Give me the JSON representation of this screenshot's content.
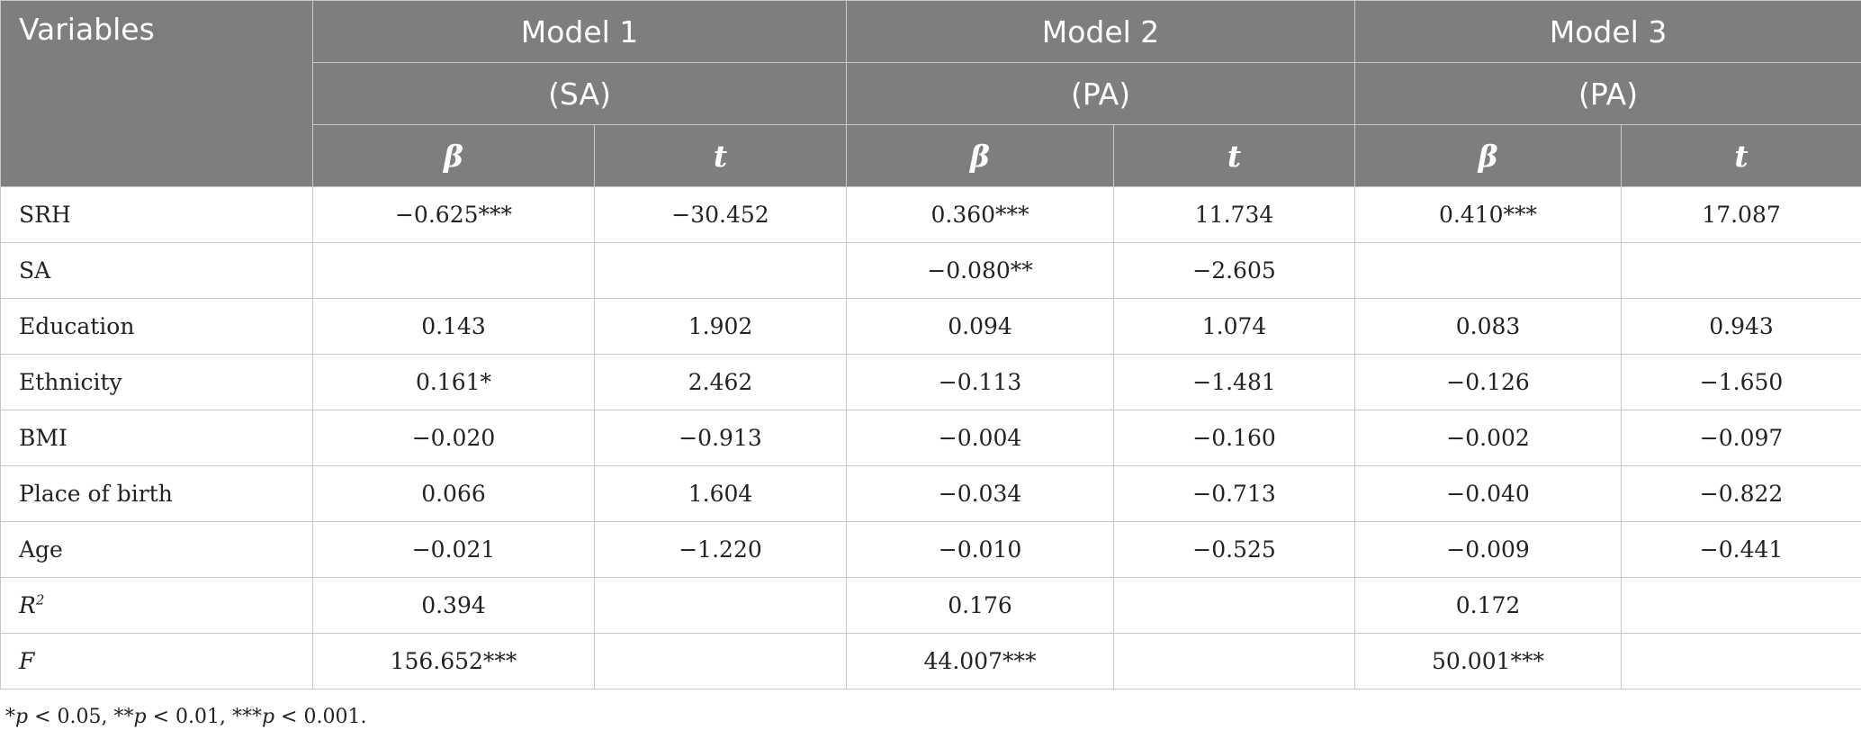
{
  "header": {
    "variables_label": "Variables",
    "models": [
      {
        "name": "Model 1",
        "outcome": "(SA)"
      },
      {
        "name": "Model 2",
        "outcome": "(PA)"
      },
      {
        "name": "Model 3",
        "outcome": "(PA)"
      }
    ],
    "beta_label": "β",
    "t_label": "t"
  },
  "rows": [
    {
      "label": "SRH",
      "m1_beta": "−0.625***",
      "m1_t": "−30.452",
      "m2_beta": "0.360***",
      "m2_t": "11.734",
      "m3_beta": "0.410***",
      "m3_t": "17.087"
    },
    {
      "label": "SA",
      "m1_beta": "",
      "m1_t": "",
      "m2_beta": "−0.080**",
      "m2_t": "−2.605",
      "m3_beta": "",
      "m3_t": ""
    },
    {
      "label": "Education",
      "m1_beta": "0.143",
      "m1_t": "1.902",
      "m2_beta": "0.094",
      "m2_t": "1.074",
      "m3_beta": "0.083",
      "m3_t": "0.943"
    },
    {
      "label": "Ethnicity",
      "m1_beta": "0.161*",
      "m1_t": "2.462",
      "m2_beta": "−0.113",
      "m2_t": "−1.481",
      "m3_beta": "−0.126",
      "m3_t": "−1.650"
    },
    {
      "label": "BMI",
      "m1_beta": "−0.020",
      "m1_t": "−0.913",
      "m2_beta": "−0.004",
      "m2_t": "−0.160",
      "m3_beta": "−0.002",
      "m3_t": "−0.097"
    },
    {
      "label": "Place of birth",
      "m1_beta": "0.066",
      "m1_t": "1.604",
      "m2_beta": "−0.034",
      "m2_t": "−0.713",
      "m3_beta": "−0.040",
      "m3_t": "−0.822"
    },
    {
      "label": "Age",
      "m1_beta": "−0.021",
      "m1_t": "−1.220",
      "m2_beta": "−0.010",
      "m2_t": "−0.525",
      "m3_beta": "−0.009",
      "m3_t": "−0.441"
    },
    {
      "label": "R",
      "label_sup": "2",
      "m1_beta": "0.394",
      "m1_t": "",
      "m2_beta": "0.176",
      "m2_t": "",
      "m3_beta": "0.172",
      "m3_t": ""
    },
    {
      "label": "F",
      "m1_beta": "156.652***",
      "m1_t": "",
      "m2_beta": "44.007***",
      "m2_t": "",
      "m3_beta": "50.001***",
      "m3_t": ""
    }
  ],
  "footnote": {
    "s1": "*",
    "p1": "p",
    "s2": " < 0.05, **",
    "p2": "p",
    "s3": " < 0.01, ***",
    "p3": "p",
    "s4": " < 0.001."
  }
}
